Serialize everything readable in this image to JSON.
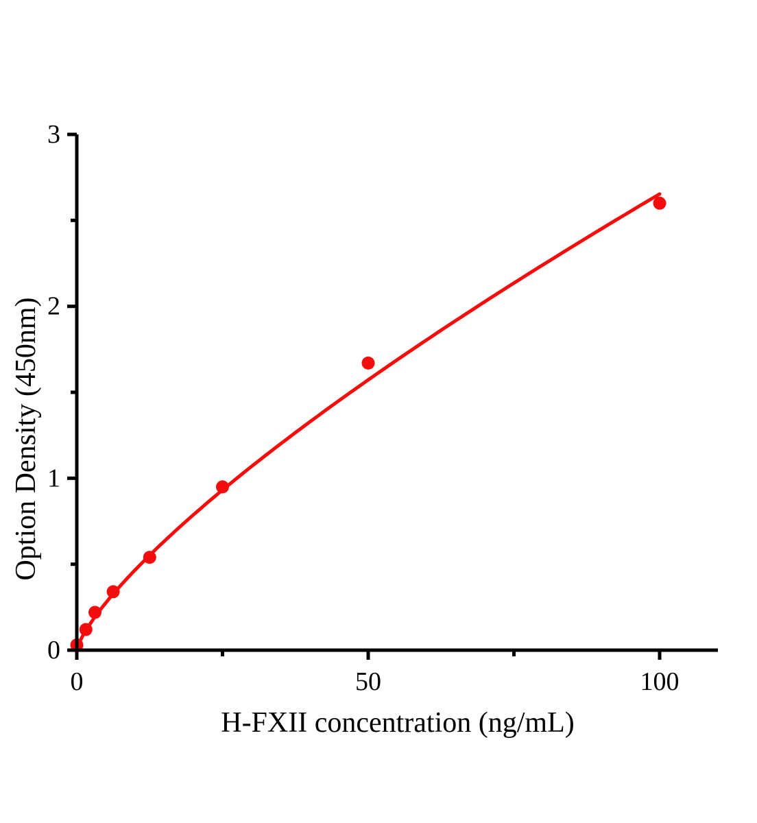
{
  "chart_data": {
    "type": "scatter",
    "title": "",
    "xlabel": "H-FXII concentration（ng/mL)",
    "ylabel": "Option Density（450nm）",
    "xlim": [
      0,
      110
    ],
    "ylim": [
      0,
      3
    ],
    "x_major_ticks": [
      0,
      50,
      100
    ],
    "x_minor_ticks": [
      25,
      75
    ],
    "y_major_ticks": [
      0,
      1,
      2,
      3
    ],
    "y_minor_ticks": [
      0.5,
      1.5,
      2.5
    ],
    "grid": false,
    "legend": null,
    "background_color": "#ffffff",
    "axis_color": "#000000",
    "accent_color": "#f30d0d",
    "series": [
      {
        "name": "standard-data-points",
        "type": "scatter",
        "marker": "filled-circle",
        "color": "#f30d0d",
        "points": [
          {
            "x": 0,
            "y": 0.03
          },
          {
            "x": 1.56,
            "y": 0.12
          },
          {
            "x": 3.12,
            "y": 0.22
          },
          {
            "x": 6.25,
            "y": 0.34
          },
          {
            "x": 12.5,
            "y": 0.54
          },
          {
            "x": 25,
            "y": 0.95
          },
          {
            "x": 50,
            "y": 1.67
          },
          {
            "x": 100,
            "y": 2.6
          }
        ]
      },
      {
        "name": "power-fit-curve",
        "type": "line",
        "color": "#f30d0d",
        "fit": {
          "model": "power",
          "a": 0.082,
          "b": 0.755,
          "x_start": 0,
          "x_end": 100
        }
      }
    ]
  }
}
